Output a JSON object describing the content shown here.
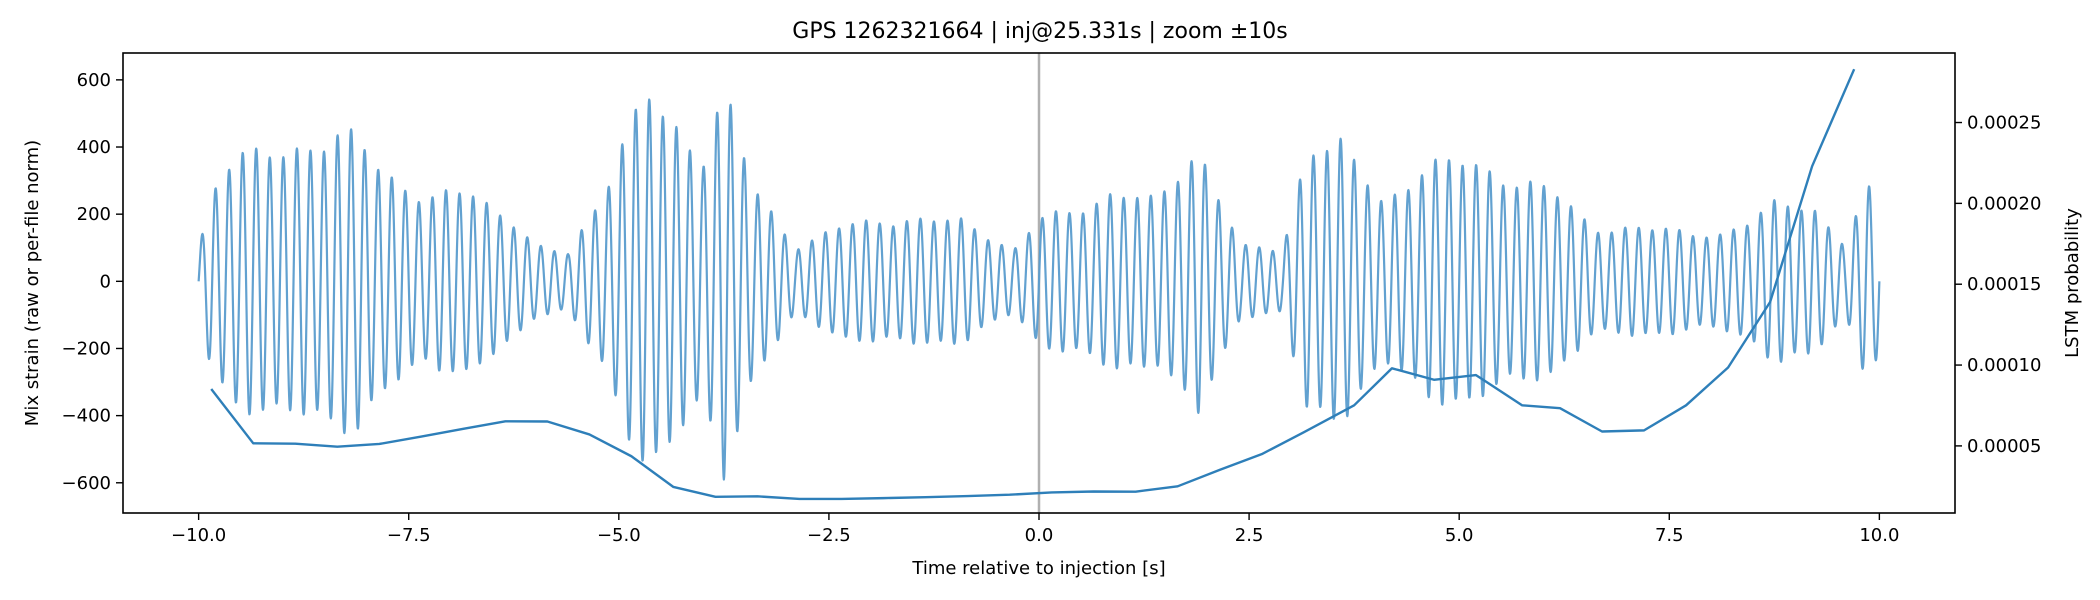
{
  "chart_data": {
    "type": "line",
    "title": "GPS 1262321664 | inj@25.331s | zoom ±10s",
    "xlabel": "Time relative to injection [s]",
    "ylabel_left": "Mix strain (raw or per-file norm)",
    "ylabel_right": "LSTM probability",
    "xlim": [
      -10.9,
      10.9
    ],
    "ylim_left": [
      -690,
      680
    ],
    "ylim_right": [
      8.5e-06,
      0.000293
    ],
    "x_ticks": [
      -10.0,
      -7.5,
      -5.0,
      -2.5,
      0.0,
      2.5,
      5.0,
      7.5,
      10.0
    ],
    "x_tick_labels": [
      "−10.0",
      "−7.5",
      "−5.0",
      "−2.5",
      "0.0",
      "2.5",
      "5.0",
      "7.5",
      "10.0"
    ],
    "y_left_ticks": [
      600,
      400,
      200,
      0,
      -200,
      -400,
      -600
    ],
    "y_left_tick_labels": [
      "600",
      "400",
      "200",
      "0",
      "−200",
      "−400",
      "−600"
    ],
    "y_right_ticks": [
      0.00025,
      0.0002,
      0.00015,
      0.0001,
      5e-05
    ],
    "y_right_tick_labels": [
      "0.00025",
      "0.00020",
      "0.00015",
      "0.00010",
      "0.00005"
    ],
    "grid": false,
    "legend": "none",
    "injection_line_x": 0.0,
    "series": [
      {
        "axis": "left",
        "color": "#5a9ccd",
        "style": "strain",
        "envelope": [
          {
            "x": -10.0,
            "amp": 100
          },
          {
            "x": -9.85,
            "amp": 280
          },
          {
            "x": -9.6,
            "amp": 380
          },
          {
            "x": -9.1,
            "amp": 430
          },
          {
            "x": -8.5,
            "amp": 430
          },
          {
            "x": -8.1,
            "amp": 470
          },
          {
            "x": -7.8,
            "amp": 360
          },
          {
            "x": -7.3,
            "amp": 250
          },
          {
            "x": -6.8,
            "amp": 300
          },
          {
            "x": -6.3,
            "amp": 200
          },
          {
            "x": -6.0,
            "amp": 110
          },
          {
            "x": -5.6,
            "amp": 90
          },
          {
            "x": -5.2,
            "amp": 280
          },
          {
            "x": -4.9,
            "amp": 470
          },
          {
            "x": -4.65,
            "amp": 590
          },
          {
            "x": -4.35,
            "amp": 500
          },
          {
            "x": -4.0,
            "amp": 400
          },
          {
            "x": -3.75,
            "amp": 610
          },
          {
            "x": -3.4,
            "amp": 300
          },
          {
            "x": -2.9,
            "amp": 110
          },
          {
            "x": -2.3,
            "amp": 180
          },
          {
            "x": -1.6,
            "amp": 200
          },
          {
            "x": -0.9,
            "amp": 190
          },
          {
            "x": -0.3,
            "amp": 100
          },
          {
            "x": 0.0,
            "amp": 200
          },
          {
            "x": 0.4,
            "amp": 220
          },
          {
            "x": 0.9,
            "amp": 290
          },
          {
            "x": 1.4,
            "amp": 250
          },
          {
            "x": 1.9,
            "amp": 430
          },
          {
            "x": 2.4,
            "amp": 110
          },
          {
            "x": 2.9,
            "amp": 100
          },
          {
            "x": 3.2,
            "amp": 440
          },
          {
            "x": 3.6,
            "amp": 430
          },
          {
            "x": 4.1,
            "amp": 250
          },
          {
            "x": 4.6,
            "amp": 370
          },
          {
            "x": 5.1,
            "amp": 380
          },
          {
            "x": 5.6,
            "amp": 330
          },
          {
            "x": 6.1,
            "amp": 290
          },
          {
            "x": 6.6,
            "amp": 170
          },
          {
            "x": 7.1,
            "amp": 170
          },
          {
            "x": 7.6,
            "amp": 160
          },
          {
            "x": 8.1,
            "amp": 150
          },
          {
            "x": 8.5,
            "amp": 190
          },
          {
            "x": 8.8,
            "amp": 260
          },
          {
            "x": 9.2,
            "amp": 240
          },
          {
            "x": 9.6,
            "amp": 110
          },
          {
            "x": 9.85,
            "amp": 300
          },
          {
            "x": 10.0,
            "amp": 230
          }
        ],
        "carrier_hz": 6.2
      },
      {
        "axis": "right",
        "color": "#2e7fb9",
        "style": "probability",
        "x": [
          -9.85,
          -9.35,
          -8.85,
          -8.35,
          -7.85,
          -7.35,
          -6.85,
          -6.35,
          -5.85,
          -5.35,
          -4.85,
          -4.35,
          -3.85,
          -3.35,
          -2.85,
          -2.35,
          -1.85,
          -1.35,
          -0.85,
          -0.35,
          0.15,
          0.65,
          1.15,
          1.65,
          2.15,
          2.65,
          3.15,
          3.75,
          4.2,
          4.7,
          5.2,
          5.75,
          6.2,
          6.7,
          7.2,
          7.7,
          8.2,
          8.7,
          9.2,
          9.7
        ],
        "values": [
          8.52e-05,
          5.16e-05,
          5.14e-05,
          4.95e-05,
          5.12e-05,
          5.58e-05,
          6.06e-05,
          6.52e-05,
          6.51e-05,
          5.71e-05,
          4.36e-05,
          2.46e-05,
          1.85e-05,
          1.88e-05,
          1.72e-05,
          1.72e-05,
          1.77e-05,
          1.83e-05,
          1.9e-05,
          1.98e-05,
          2.12e-05,
          2.18e-05,
          2.17e-05,
          2.5e-05,
          3.52e-05,
          4.49e-05,
          5.84e-05,
          7.51e-05,
          9.8e-05,
          9.09e-05,
          9.38e-05,
          7.51e-05,
          7.33e-05,
          5.89e-05,
          5.96e-05,
          7.51e-05,
          9.85e-05,
          0.000139,
          0.000223,
          0.000283
        ]
      }
    ]
  }
}
